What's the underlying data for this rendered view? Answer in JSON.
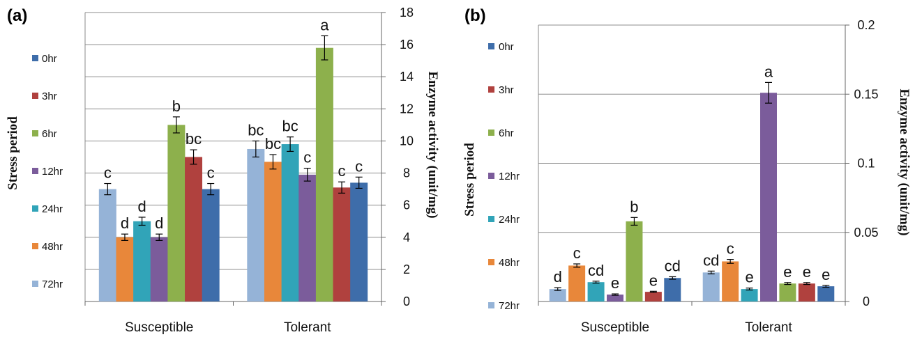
{
  "panels": [
    {
      "panel_label": "(a)",
      "legend_title": "Stress period",
      "ylabel": "Enzyme activity (unit/mg)",
      "chart_data": {
        "type": "bar",
        "categories": [
          "Susceptible",
          "Tolerant"
        ],
        "series": [
          {
            "name": "72hr",
            "color": "#95B3D7",
            "values": [
              7.0,
              9.5
            ],
            "errors": [
              0.35,
              0.5
            ],
            "letters": [
              "c",
              "bc"
            ]
          },
          {
            "name": "48hr",
            "color": "#E8873A",
            "values": [
              4.0,
              8.7
            ],
            "errors": [
              0.2,
              0.45
            ],
            "letters": [
              "d",
              "bc"
            ]
          },
          {
            "name": "24hr",
            "color": "#31A4B8",
            "values": [
              5.0,
              9.8
            ],
            "errors": [
              0.25,
              0.45
            ],
            "letters": [
              "d",
              "bc"
            ]
          },
          {
            "name": "12hr",
            "color": "#7B5C9B",
            "values": [
              4.0,
              7.9
            ],
            "errors": [
              0.2,
              0.4
            ],
            "letters": [
              "d",
              "c"
            ]
          },
          {
            "name": "6hr",
            "color": "#8DB04C",
            "values": [
              11.0,
              15.8
            ],
            "errors": [
              0.5,
              0.75
            ],
            "letters": [
              "b",
              "a"
            ]
          },
          {
            "name": "3hr",
            "color": "#B0413E",
            "values": [
              9.0,
              7.1
            ],
            "errors": [
              0.45,
              0.35
            ],
            "letters": [
              "bc",
              "c"
            ]
          },
          {
            "name": "0hr",
            "color": "#3E6DAA",
            "values": [
              7.0,
              7.4
            ],
            "errors": [
              0.35,
              0.35
            ],
            "letters": [
              "c",
              "c"
            ]
          }
        ],
        "ylim": [
          0,
          18
        ],
        "yticks": [
          "0",
          "2",
          "4",
          "6",
          "8",
          "10",
          "12",
          "14",
          "16",
          "18"
        ],
        "ytick_values": [
          0,
          2,
          4,
          6,
          8,
          10,
          12,
          14,
          16,
          18
        ],
        "grid": true,
        "legend": "left"
      }
    },
    {
      "panel_label": "(b)",
      "legend_title": "Stress period",
      "ylabel": "Enzyme activity (unit/mg)",
      "chart_data": {
        "type": "bar",
        "categories": [
          "Susceptible",
          "Tolerant"
        ],
        "series": [
          {
            "name": "72hr",
            "color": "#95B3D7",
            "values": [
              0.009,
              0.021
            ],
            "errors": [
              0.001,
              0.001
            ],
            "letters": [
              "d",
              "cd"
            ]
          },
          {
            "name": "48hr",
            "color": "#E8873A",
            "values": [
              0.026,
              0.029
            ],
            "errors": [
              0.0012,
              0.0014
            ],
            "letters": [
              "c",
              "c"
            ]
          },
          {
            "name": "24hr",
            "color": "#31A4B8",
            "values": [
              0.014,
              0.009
            ],
            "errors": [
              0.0007,
              0.0007
            ],
            "letters": [
              "cd",
              "e"
            ]
          },
          {
            "name": "12hr",
            "color": "#7B5C9B",
            "values": [
              0.005,
              0.151
            ],
            "errors": [
              0.0005,
              0.0075
            ],
            "letters": [
              "e",
              "a"
            ]
          },
          {
            "name": "6hr",
            "color": "#8DB04C",
            "values": [
              0.058,
              0.013
            ],
            "errors": [
              0.0028,
              0.0007
            ],
            "letters": [
              "b",
              "e"
            ]
          },
          {
            "name": "3hr",
            "color": "#B0413E",
            "values": [
              0.007,
              0.013
            ],
            "errors": [
              0.0004,
              0.0007
            ],
            "letters": [
              "e",
              "e"
            ]
          },
          {
            "name": "0hr",
            "color": "#3E6DAA",
            "values": [
              0.017,
              0.011
            ],
            "errors": [
              0.0009,
              0.0007
            ],
            "letters": [
              "cd",
              "e"
            ]
          }
        ],
        "ylim": [
          0,
          0.2
        ],
        "yticks": [
          "0",
          "0.05",
          "0.1",
          "0.15",
          "0.2"
        ],
        "ytick_values": [
          0,
          0.05,
          0.1,
          0.15,
          0.2
        ],
        "grid": true,
        "legend": "left"
      }
    }
  ]
}
